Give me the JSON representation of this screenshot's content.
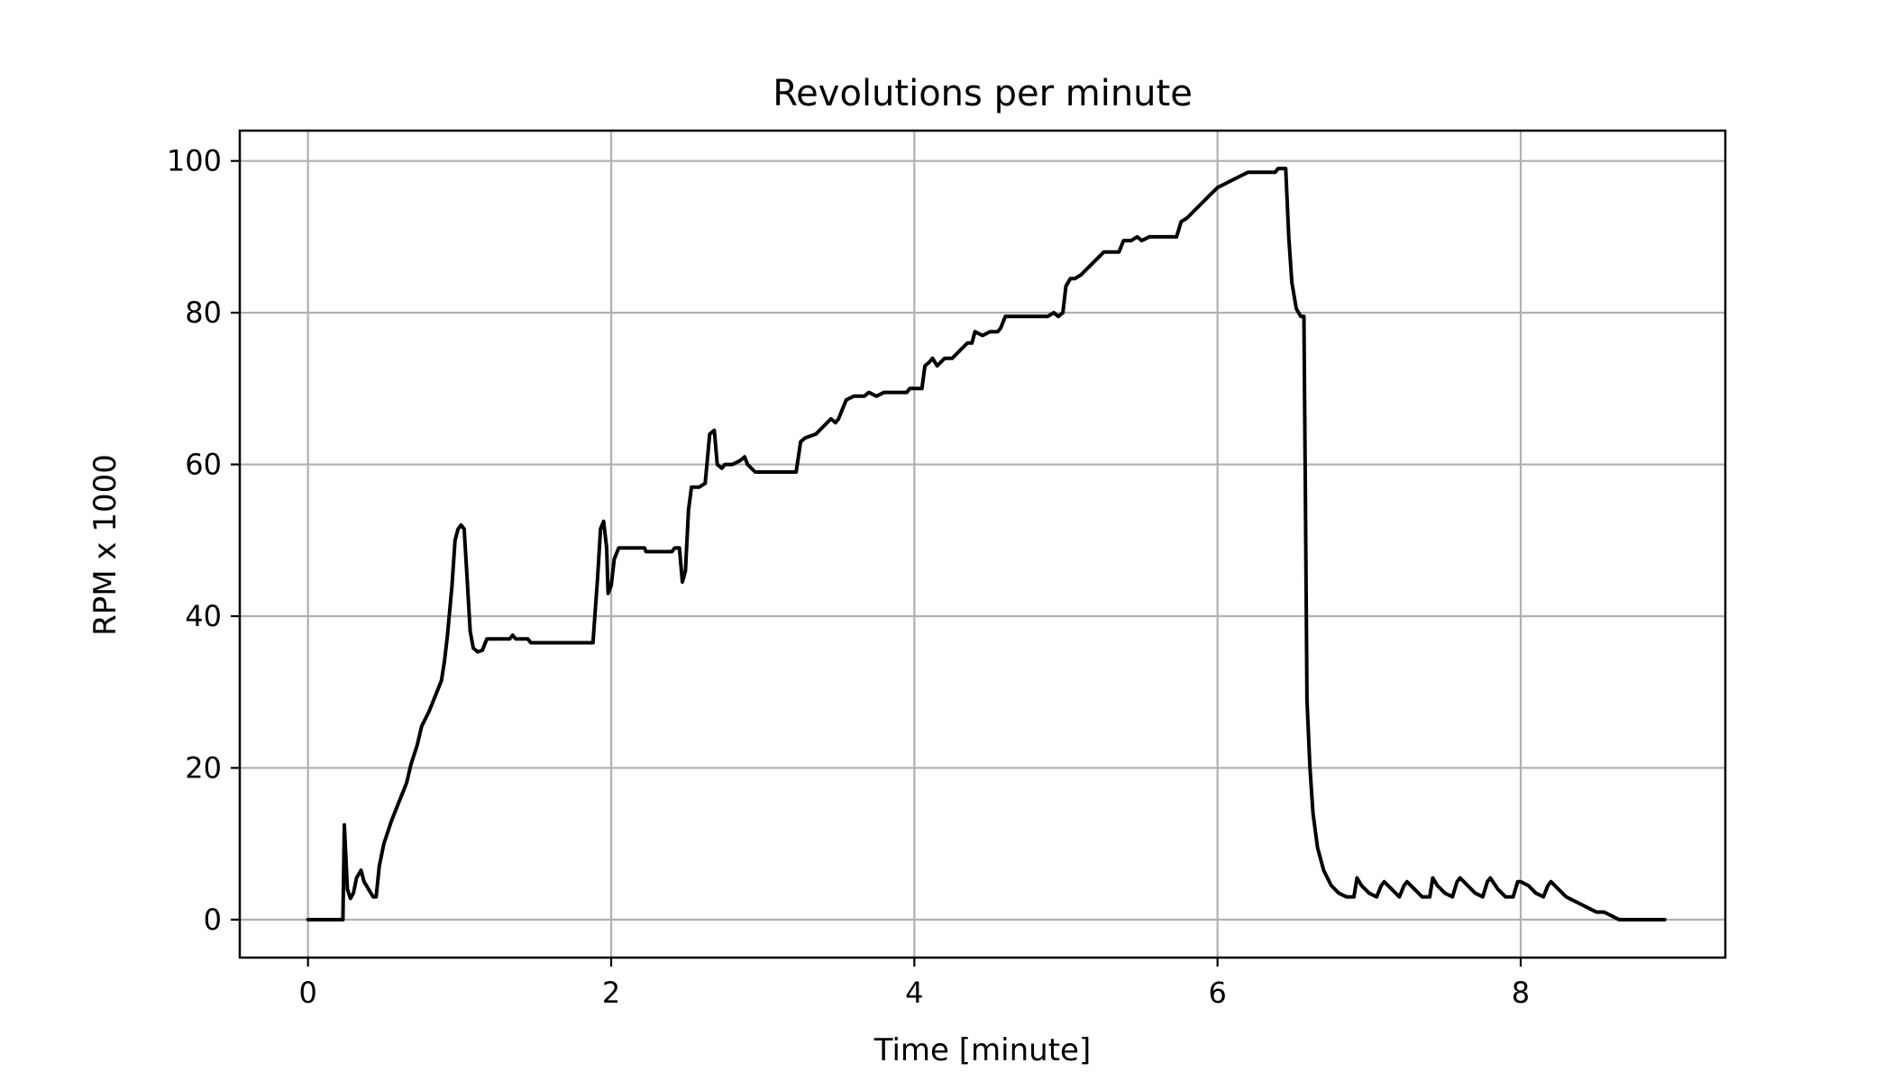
{
  "chart_data": {
    "type": "line",
    "title": "Revolutions per minute",
    "xlabel": "Time [minute]",
    "ylabel": "RPM x 1000",
    "xlim": [
      -0.45,
      9.35
    ],
    "ylim": [
      -5,
      104
    ],
    "x_ticks": [
      0,
      2,
      4,
      6,
      8
    ],
    "y_ticks": [
      0,
      20,
      40,
      60,
      80,
      100
    ],
    "grid": true,
    "legend": "none",
    "line_color": "#000000",
    "grid_color": "#b0b0b0",
    "series": [
      {
        "points": [
          [
            0.0,
            0
          ],
          [
            0.23,
            0
          ],
          [
            0.24,
            12.5
          ],
          [
            0.26,
            4
          ],
          [
            0.28,
            2.8
          ],
          [
            0.3,
            3.5
          ],
          [
            0.32,
            5.5
          ],
          [
            0.35,
            6.5
          ],
          [
            0.37,
            5
          ],
          [
            0.4,
            4
          ],
          [
            0.43,
            3
          ],
          [
            0.45,
            3
          ],
          [
            0.47,
            7
          ],
          [
            0.5,
            10
          ],
          [
            0.55,
            13
          ],
          [
            0.6,
            15.5
          ],
          [
            0.65,
            18
          ],
          [
            0.68,
            20.5
          ],
          [
            0.72,
            23
          ],
          [
            0.75,
            25.5
          ],
          [
            0.8,
            27.5
          ],
          [
            0.85,
            30
          ],
          [
            0.88,
            31.5
          ],
          [
            0.9,
            34
          ],
          [
            0.92,
            37.5
          ],
          [
            0.95,
            44
          ],
          [
            0.97,
            50
          ],
          [
            0.99,
            51.5
          ],
          [
            1.01,
            52
          ],
          [
            1.03,
            51.5
          ],
          [
            1.05,
            45
          ],
          [
            1.07,
            38
          ],
          [
            1.09,
            35.8
          ],
          [
            1.12,
            35.3
          ],
          [
            1.15,
            35.5
          ],
          [
            1.18,
            37
          ],
          [
            1.25,
            37
          ],
          [
            1.33,
            37
          ],
          [
            1.35,
            37.5
          ],
          [
            1.37,
            37
          ],
          [
            1.45,
            37
          ],
          [
            1.47,
            36.5
          ],
          [
            1.88,
            36.5
          ],
          [
            1.91,
            45
          ],
          [
            1.93,
            51.5
          ],
          [
            1.95,
            52.5
          ],
          [
            1.97,
            49
          ],
          [
            1.98,
            43
          ],
          [
            2.0,
            44
          ],
          [
            2.02,
            47.5
          ],
          [
            2.05,
            49
          ],
          [
            2.22,
            49
          ],
          [
            2.23,
            48.5
          ],
          [
            2.4,
            48.5
          ],
          [
            2.42,
            49
          ],
          [
            2.45,
            49
          ],
          [
            2.47,
            44.5
          ],
          [
            2.49,
            46
          ],
          [
            2.51,
            54
          ],
          [
            2.53,
            57
          ],
          [
            2.58,
            57
          ],
          [
            2.62,
            57.5
          ],
          [
            2.65,
            64
          ],
          [
            2.68,
            64.5
          ],
          [
            2.7,
            60
          ],
          [
            2.73,
            59.5
          ],
          [
            2.75,
            60
          ],
          [
            2.8,
            60
          ],
          [
            2.85,
            60.5
          ],
          [
            2.88,
            61
          ],
          [
            2.9,
            60
          ],
          [
            2.95,
            59
          ],
          [
            3.22,
            59
          ],
          [
            3.25,
            63
          ],
          [
            3.28,
            63.5
          ],
          [
            3.35,
            64
          ],
          [
            3.4,
            65
          ],
          [
            3.45,
            66
          ],
          [
            3.48,
            65.5
          ],
          [
            3.5,
            66
          ],
          [
            3.55,
            68.5
          ],
          [
            3.6,
            69
          ],
          [
            3.67,
            69
          ],
          [
            3.7,
            69.5
          ],
          [
            3.75,
            69
          ],
          [
            3.8,
            69.5
          ],
          [
            3.9,
            69.5
          ],
          [
            3.95,
            69.5
          ],
          [
            3.97,
            70
          ],
          [
            4.05,
            70
          ],
          [
            4.07,
            73
          ],
          [
            4.1,
            73.5
          ],
          [
            4.12,
            74
          ],
          [
            4.15,
            73
          ],
          [
            4.2,
            74
          ],
          [
            4.25,
            74
          ],
          [
            4.3,
            75
          ],
          [
            4.35,
            76
          ],
          [
            4.38,
            76
          ],
          [
            4.4,
            77.5
          ],
          [
            4.45,
            77
          ],
          [
            4.5,
            77.5
          ],
          [
            4.55,
            77.5
          ],
          [
            4.57,
            78
          ],
          [
            4.6,
            79.5
          ],
          [
            4.65,
            79.5
          ],
          [
            4.88,
            79.5
          ],
          [
            4.92,
            80
          ],
          [
            4.95,
            79.5
          ],
          [
            4.98,
            80
          ],
          [
            5.0,
            83.5
          ],
          [
            5.03,
            84.5
          ],
          [
            5.06,
            84.5
          ],
          [
            5.1,
            85
          ],
          [
            5.15,
            86
          ],
          [
            5.2,
            87
          ],
          [
            5.25,
            88
          ],
          [
            5.35,
            88
          ],
          [
            5.38,
            89.5
          ],
          [
            5.43,
            89.5
          ],
          [
            5.47,
            90
          ],
          [
            5.5,
            89.5
          ],
          [
            5.55,
            90
          ],
          [
            5.73,
            90
          ],
          [
            5.76,
            92
          ],
          [
            5.8,
            92.5
          ],
          [
            5.85,
            93.5
          ],
          [
            5.9,
            94.5
          ],
          [
            5.95,
            95.5
          ],
          [
            6.0,
            96.5
          ],
          [
            6.05,
            97
          ],
          [
            6.1,
            97.5
          ],
          [
            6.15,
            98
          ],
          [
            6.2,
            98.5
          ],
          [
            6.25,
            98.5
          ],
          [
            6.38,
            98.5
          ],
          [
            6.4,
            99
          ],
          [
            6.45,
            99
          ],
          [
            6.47,
            90
          ],
          [
            6.49,
            84
          ],
          [
            6.52,
            80.5
          ],
          [
            6.55,
            79.5
          ],
          [
            6.57,
            79.5
          ],
          [
            6.58,
            55
          ],
          [
            6.59,
            29
          ],
          [
            6.61,
            20
          ],
          [
            6.63,
            14
          ],
          [
            6.66,
            9.5
          ],
          [
            6.7,
            6.5
          ],
          [
            6.75,
            4.5
          ],
          [
            6.8,
            3.5
          ],
          [
            6.85,
            3
          ],
          [
            6.9,
            3
          ],
          [
            6.92,
            5.5
          ],
          [
            6.95,
            4.5
          ],
          [
            7.0,
            3.5
          ],
          [
            7.05,
            3
          ],
          [
            7.08,
            4.5
          ],
          [
            7.1,
            5
          ],
          [
            7.15,
            4
          ],
          [
            7.2,
            3
          ],
          [
            7.23,
            4.5
          ],
          [
            7.25,
            5
          ],
          [
            7.3,
            4
          ],
          [
            7.35,
            3
          ],
          [
            7.4,
            3
          ],
          [
            7.42,
            5.5
          ],
          [
            7.45,
            4.5
          ],
          [
            7.5,
            3.5
          ],
          [
            7.55,
            3
          ],
          [
            7.58,
            5
          ],
          [
            7.6,
            5.5
          ],
          [
            7.65,
            4.5
          ],
          [
            7.7,
            3.5
          ],
          [
            7.75,
            3
          ],
          [
            7.78,
            5
          ],
          [
            7.8,
            5.5
          ],
          [
            7.85,
            4
          ],
          [
            7.9,
            3
          ],
          [
            7.95,
            3
          ],
          [
            7.98,
            5
          ],
          [
            8.0,
            5
          ],
          [
            8.05,
            4.5
          ],
          [
            8.1,
            3.5
          ],
          [
            8.15,
            3
          ],
          [
            8.18,
            4.5
          ],
          [
            8.2,
            5
          ],
          [
            8.25,
            4
          ],
          [
            8.3,
            3
          ],
          [
            8.35,
            2.5
          ],
          [
            8.4,
            2
          ],
          [
            8.45,
            1.5
          ],
          [
            8.5,
            1
          ],
          [
            8.55,
            1
          ],
          [
            8.6,
            0.5
          ],
          [
            8.65,
            0
          ],
          [
            8.95,
            0
          ]
        ]
      }
    ]
  }
}
